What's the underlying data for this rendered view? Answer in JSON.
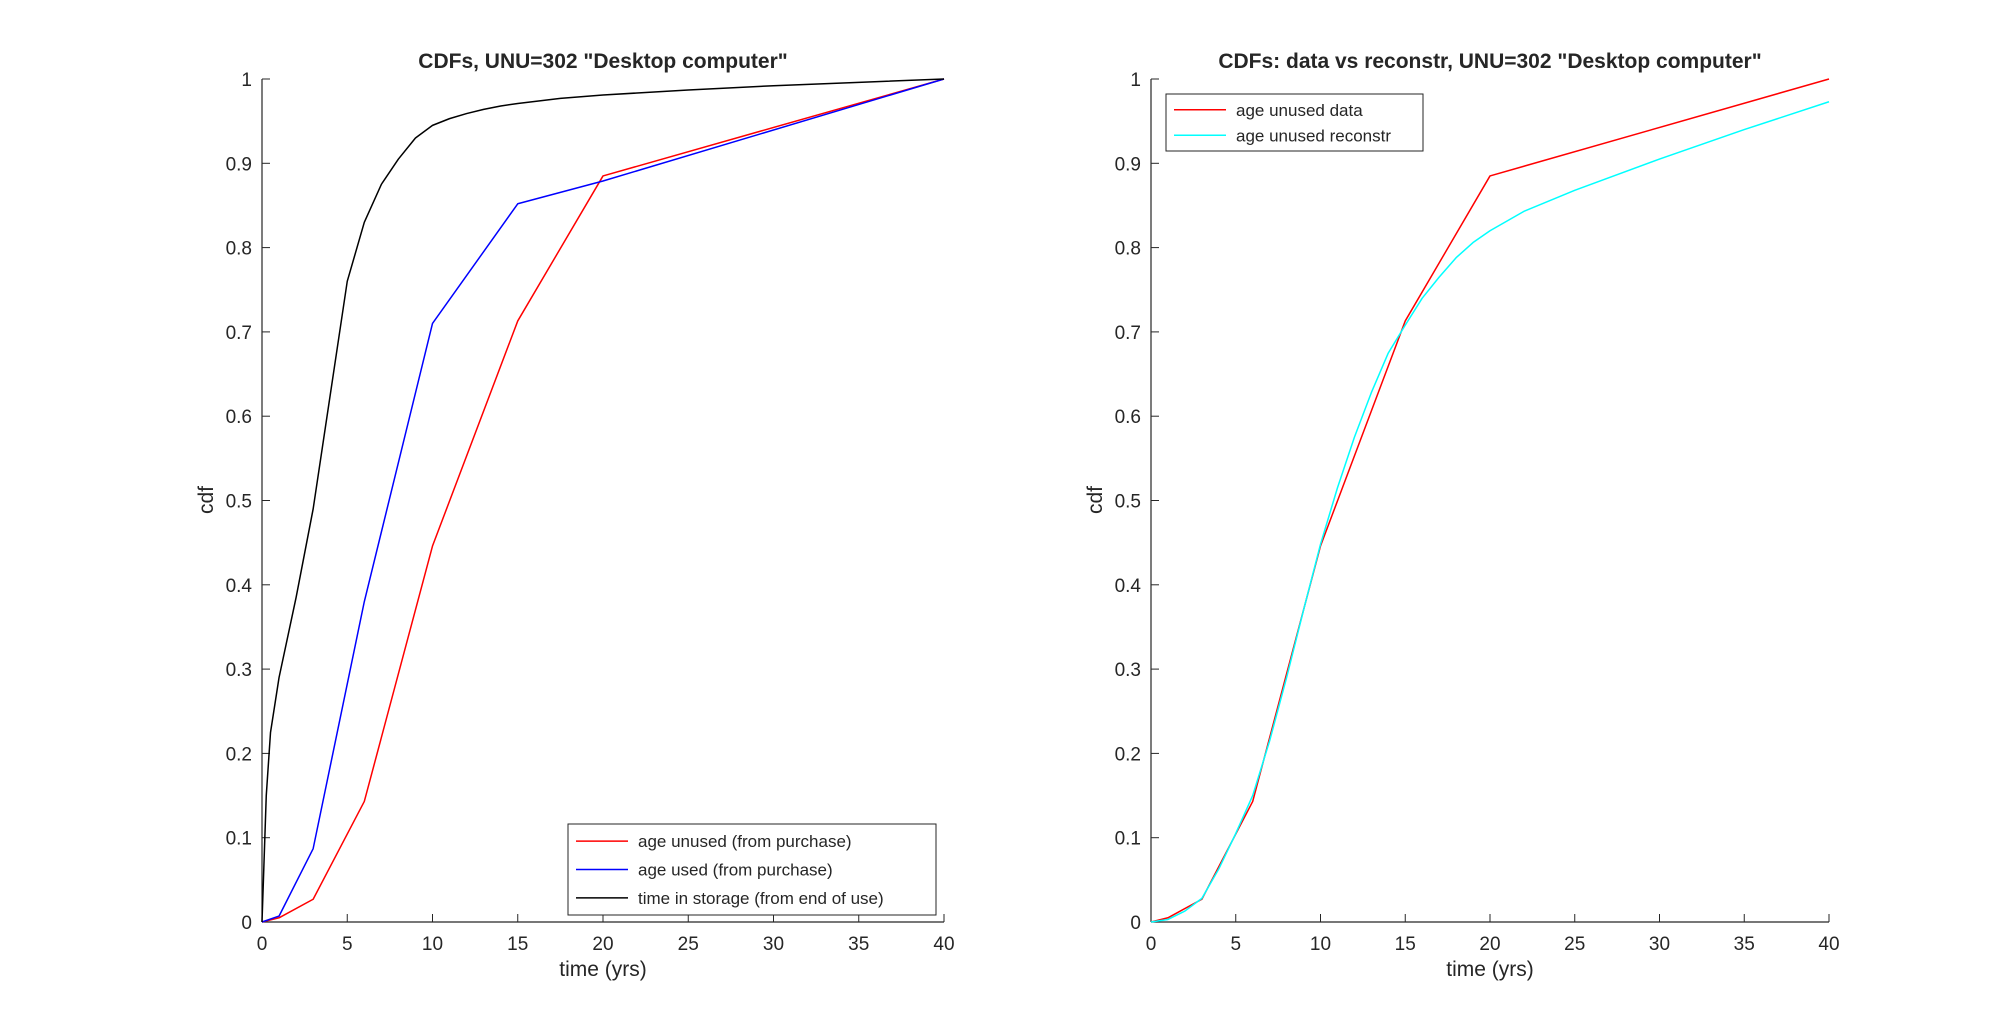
{
  "chart_data": [
    {
      "type": "line",
      "title": "CDFs, UNU=302 \"Desktop computer\"",
      "xlabel": "time (yrs)",
      "ylabel": "cdf",
      "xlim": [
        0,
        40
      ],
      "ylim": [
        0,
        1
      ],
      "xticks": [
        0,
        5,
        10,
        15,
        20,
        25,
        30,
        35,
        40
      ],
      "yticks": [
        0,
        0.1,
        0.2,
        0.3,
        0.4,
        0.5,
        0.6,
        0.7,
        0.8,
        0.9,
        1
      ],
      "ytick_labels": [
        "0",
        "0.1",
        "0.2",
        "0.3",
        "0.4",
        "0.5",
        "0.6",
        "0.7",
        "0.8",
        "0.9",
        "1"
      ],
      "grid": false,
      "legend_location": "bottom-right",
      "series": [
        {
          "name": "age unused (from purchase)",
          "color": "#ff0000",
          "x": [
            0,
            1,
            3,
            6,
            10,
            15,
            20,
            40
          ],
          "y": [
            0,
            0.005,
            0.027,
            0.143,
            0.446,
            0.713,
            0.885,
            1.0
          ]
        },
        {
          "name": "age used (from purchase)",
          "color": "#0000ff",
          "x": [
            0,
            1,
            3,
            6,
            10,
            15,
            20,
            40
          ],
          "y": [
            0,
            0.007,
            0.087,
            0.38,
            0.71,
            0.852,
            0.879,
            1.0
          ]
        },
        {
          "name": "time in storage (from end of use)",
          "color": "#000000",
          "x": [
            0,
            0.25,
            0.5,
            1,
            2,
            3,
            4,
            5,
            6,
            7,
            8,
            9,
            10,
            11,
            12,
            13,
            14,
            15,
            17.5,
            20,
            25,
            30,
            35,
            40
          ],
          "y": [
            0,
            0.15,
            0.225,
            0.29,
            0.385,
            0.49,
            0.625,
            0.76,
            0.83,
            0.875,
            0.905,
            0.93,
            0.945,
            0.953,
            0.959,
            0.964,
            0.968,
            0.971,
            0.977,
            0.981,
            0.987,
            0.992,
            0.996,
            1.0
          ]
        }
      ]
    },
    {
      "type": "line",
      "title": "CDFs: data vs reconstr, UNU=302 \"Desktop computer\"",
      "xlabel": "time (yrs)",
      "ylabel": "cdf",
      "xlim": [
        0,
        40
      ],
      "ylim": [
        0,
        1
      ],
      "xticks": [
        0,
        5,
        10,
        15,
        20,
        25,
        30,
        35,
        40
      ],
      "yticks": [
        0,
        0.1,
        0.2,
        0.3,
        0.4,
        0.5,
        0.6,
        0.7,
        0.8,
        0.9,
        1
      ],
      "ytick_labels": [
        "0",
        "0.1",
        "0.2",
        "0.3",
        "0.4",
        "0.5",
        "0.6",
        "0.7",
        "0.8",
        "0.9",
        "1"
      ],
      "grid": false,
      "legend_location": "top-left",
      "series": [
        {
          "name": "age unused data",
          "color": "#ff0000",
          "x": [
            0,
            1,
            3,
            6,
            10,
            15,
            20,
            40
          ],
          "y": [
            0,
            0.005,
            0.027,
            0.143,
            0.446,
            0.713,
            0.885,
            1.0
          ]
        },
        {
          "name": "age unused reconstr",
          "color": "#00ffff",
          "x": [
            0,
            1,
            2,
            3,
            4,
            5,
            6,
            7,
            8,
            9,
            10,
            11,
            12,
            13,
            14,
            15,
            16,
            17,
            18,
            19,
            20,
            22,
            25,
            30,
            35,
            40
          ],
          "y": [
            0,
            0.003,
            0.013,
            0.028,
            0.063,
            0.105,
            0.15,
            0.215,
            0.29,
            0.37,
            0.448,
            0.515,
            0.575,
            0.628,
            0.675,
            0.708,
            0.74,
            0.765,
            0.788,
            0.806,
            0.82,
            0.843,
            0.868,
            0.905,
            0.94,
            0.973
          ]
        }
      ]
    }
  ]
}
